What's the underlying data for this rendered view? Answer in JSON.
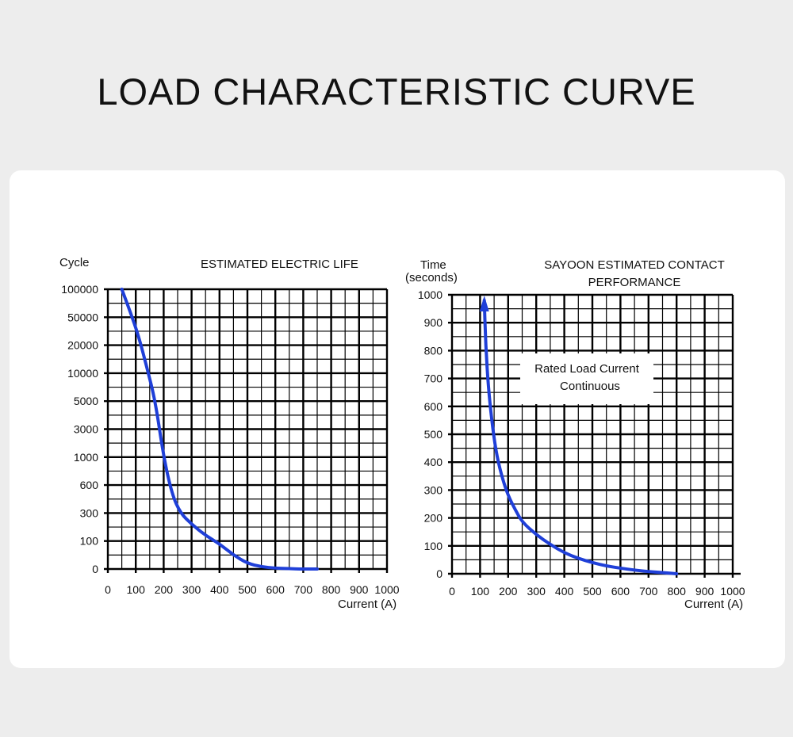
{
  "page": {
    "title": "LOAD CHARACTERISTIC CURVE"
  },
  "colors": {
    "background": "#ededed",
    "panel": "#ffffff",
    "curve": "#1f3fd8",
    "grid": "#000000"
  },
  "chart_data": [
    {
      "type": "line",
      "title": "ESTIMATED ELECTRIC LIFE",
      "xlabel": "Current (A)",
      "ylabel": "Cycle",
      "xlim": [
        0,
        1000
      ],
      "x_ticks": [
        "0",
        "100",
        "200",
        "300",
        "400",
        "500",
        "600",
        "700",
        "800",
        "900",
        "1000"
      ],
      "y_ticks": [
        "0",
        "100",
        "300",
        "600",
        "1000",
        "3000",
        "5000",
        "10000",
        "20000",
        "50000",
        "100000"
      ],
      "grid": true,
      "series": [
        {
          "x": [
            50,
            80,
            110,
            140,
            170,
            200,
            230,
            260,
            300,
            350,
            400,
            450,
            500,
            550,
            600,
            650,
            700,
            750
          ],
          "y": [
            100000,
            60000,
            30000,
            12000,
            5000,
            1000,
            500,
            300,
            220,
            140,
            90,
            50,
            20,
            8,
            3,
            1,
            0,
            0
          ]
        }
      ]
    },
    {
      "type": "line",
      "title": "SAYOON ESTIMATED CONTACT PERFORMANCE",
      "xlabel": "Current (A)",
      "ylabel": "Time (seconds)",
      "xlim": [
        0,
        1000
      ],
      "ylim": [
        0,
        1000
      ],
      "x_ticks": [
        "0",
        "100",
        "200",
        "300",
        "400",
        "500",
        "600",
        "700",
        "800",
        "900",
        "1000"
      ],
      "y_ticks": [
        "0",
        "100",
        "200",
        "300",
        "400",
        "500",
        "600",
        "700",
        "800",
        "900",
        "1000"
      ],
      "grid": true,
      "annotation": {
        "line1": "Rated Load Current",
        "line2": "Continuous"
      },
      "series": [
        {
          "x": [
            115,
            120,
            130,
            145,
            160,
            180,
            200,
            225,
            250,
            300,
            350,
            400,
            450,
            500,
            550,
            600,
            650,
            700,
            750,
            800
          ],
          "y": [
            980,
            820,
            660,
            520,
            420,
            340,
            280,
            230,
            185,
            140,
            105,
            75,
            55,
            40,
            28,
            20,
            13,
            8,
            4,
            0
          ]
        }
      ]
    }
  ]
}
